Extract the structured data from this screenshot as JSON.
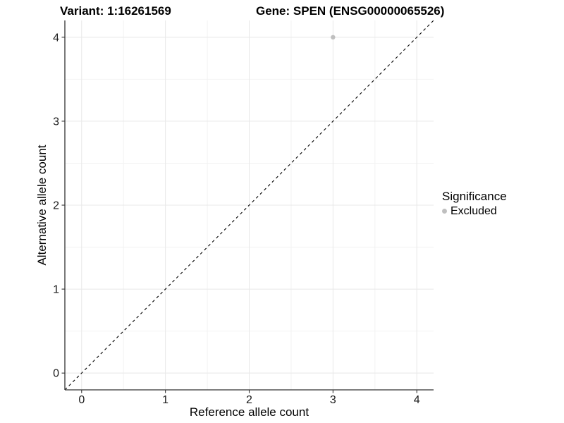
{
  "titles": {
    "variant": "Variant: 1:16261569",
    "gene": "Gene: SPEN (ENSG00000065526)"
  },
  "axes": {
    "x_label": "Reference allele count",
    "y_label": "Alternative allele count"
  },
  "legend": {
    "title": "Significance",
    "items": [
      {
        "label": "Excluded",
        "color": "#bfbfbf"
      }
    ]
  },
  "chart_data": {
    "type": "scatter",
    "title": "Variant: 1:16261569   Gene: SPEN (ENSG00000065526)",
    "xlabel": "Reference allele count",
    "ylabel": "Alternative allele count",
    "xlim": [
      -0.2,
      4.2
    ],
    "ylim": [
      -0.2,
      4.2
    ],
    "x_ticks": [
      0,
      1,
      2,
      3,
      4
    ],
    "y_ticks": [
      0,
      1,
      2,
      3,
      4
    ],
    "minor_ticks_x": [
      0.5,
      1.5,
      2.5,
      3.5
    ],
    "minor_ticks_y": [
      0.5,
      1.5,
      2.5,
      3.5
    ],
    "grid": true,
    "legend_position": "right",
    "series": [
      {
        "name": "Excluded",
        "color": "#bfbfbf",
        "point_radius": 3.2,
        "points": [
          {
            "x": 3,
            "y": 4
          }
        ]
      }
    ],
    "reference_line": {
      "type": "identity",
      "slope": 1,
      "intercept": 0,
      "style": "dashed",
      "color": "#000000"
    }
  },
  "colors": {
    "background": "#ffffff",
    "grid_major": "#e8e8e8",
    "grid_minor": "#f2f2f2",
    "axis_line": "#333333",
    "tick_text": "#1a1a1a",
    "point": "#bfbfbf"
  }
}
